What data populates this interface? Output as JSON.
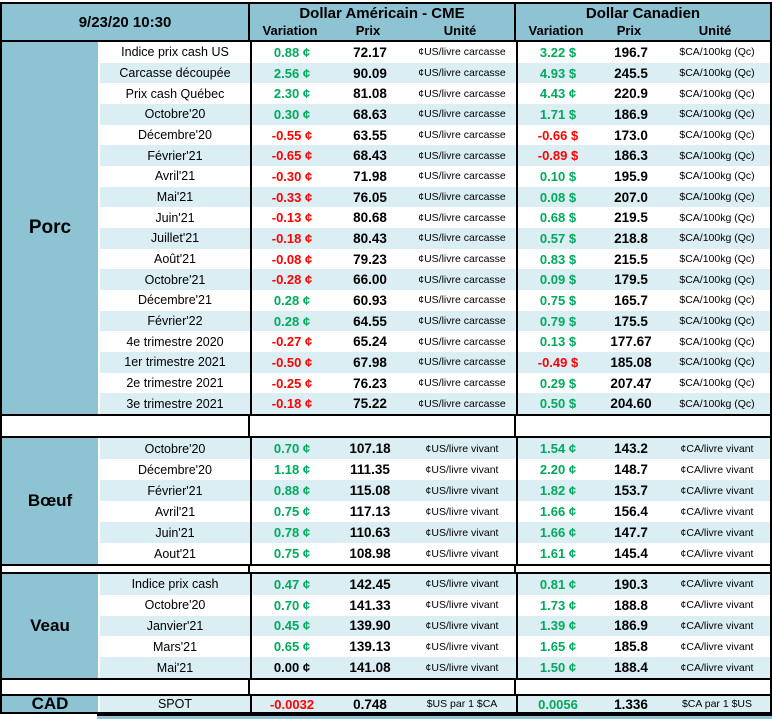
{
  "header": {
    "datetime": "9/23/20 10:30",
    "us_title": "Dollar Américain - CME",
    "ca_title": "Dollar Canadien",
    "col_variation": "Variation",
    "col_prix": "Prix",
    "col_unite": "Unité"
  },
  "colors": {
    "teal_header": "#8EC3D4",
    "stripe_blue": "#DAEEF3",
    "positive_green": "#00A95C",
    "negative_red": "#FF0000",
    "zero_black": "#000000"
  },
  "sections": [
    {
      "name": "Porc",
      "first_stripe": "white",
      "us_unit": "¢US/livre carcasse",
      "ca_unit": "$CA/100kg (Qc)",
      "rows": [
        {
          "label": "Indice prix cash US",
          "us_var": "0.88 ¢",
          "us_prix": "72.17",
          "ca_var": "3.22 $",
          "ca_prix": "196.7"
        },
        {
          "label": "Carcasse découpée",
          "us_var": "2.56 ¢",
          "us_prix": "90.09",
          "ca_var": "4.93 $",
          "ca_prix": "245.5"
        },
        {
          "label": "Prix cash Québec",
          "us_var": "2.30 ¢",
          "us_prix": "81.08",
          "ca_var": "4.43 ¢",
          "ca_prix": "220.9"
        },
        {
          "label": "Octobre'20",
          "us_var": "0.30 ¢",
          "us_prix": "68.63",
          "ca_var": "1.71 $",
          "ca_prix": "186.9"
        },
        {
          "label": "Décembre'20",
          "us_var": "-0.55 ¢",
          "us_prix": "63.55",
          "ca_var": "-0.66 $",
          "ca_prix": "173.0"
        },
        {
          "label": "Février'21",
          "us_var": "-0.65 ¢",
          "us_prix": "68.43",
          "ca_var": "-0.89 $",
          "ca_prix": "186.3"
        },
        {
          "label": "Avril'21",
          "us_var": "-0.30 ¢",
          "us_prix": "71.98",
          "ca_var": "0.10 $",
          "ca_prix": "195.9"
        },
        {
          "label": "Mai'21",
          "us_var": "-0.33 ¢",
          "us_prix": "76.05",
          "ca_var": "0.08 $",
          "ca_prix": "207.0"
        },
        {
          "label": "Juin'21",
          "us_var": "-0.13 ¢",
          "us_prix": "80.68",
          "ca_var": "0.68 $",
          "ca_prix": "219.5"
        },
        {
          "label": "Juillet'21",
          "us_var": "-0.18 ¢",
          "us_prix": "80.43",
          "ca_var": "0.57 $",
          "ca_prix": "218.8"
        },
        {
          "label": "Août'21",
          "us_var": "-0.08 ¢",
          "us_prix": "79.23",
          "ca_var": "0.83 $",
          "ca_prix": "215.5"
        },
        {
          "label": "Octobre'21",
          "us_var": "-0.28 ¢",
          "us_prix": "66.00",
          "ca_var": "0.09 $",
          "ca_prix": "179.5"
        },
        {
          "label": "Décembre'21",
          "us_var": "0.28 ¢",
          "us_prix": "60.93",
          "ca_var": "0.75 $",
          "ca_prix": "165.7"
        },
        {
          "label": "Février'22",
          "us_var": "0.28 ¢",
          "us_prix": "64.55",
          "ca_var": "0.79 $",
          "ca_prix": "175.5"
        },
        {
          "label": "4e trimestre 2020",
          "us_var": "-0.27 ¢",
          "us_prix": "65.24",
          "ca_var": "0.13 $",
          "ca_prix": "177.67"
        },
        {
          "label": "1er trimestre 2021",
          "us_var": "-0.50 ¢",
          "us_prix": "67.98",
          "ca_var": "-0.49 $",
          "ca_prix": "185.08"
        },
        {
          "label": "2e trimestre 2021",
          "us_var": "-0.25 ¢",
          "us_prix": "76.23",
          "ca_var": "0.29 $",
          "ca_prix": "207.47"
        },
        {
          "label": "3e trimestre 2021",
          "us_var": "-0.18 ¢",
          "us_prix": "75.22",
          "ca_var": "0.50 $",
          "ca_prix": "204.60"
        }
      ]
    },
    {
      "name": "Bœuf",
      "first_stripe": "blue",
      "us_unit": "¢US/livre vivant",
      "ca_unit": "¢CA/livre vivant",
      "rows": [
        {
          "label": "Octobre'20",
          "us_var": "0.70 ¢",
          "us_prix": "107.18",
          "ca_var": "1.54 ¢",
          "ca_prix": "143.2"
        },
        {
          "label": "Décembre'20",
          "us_var": "1.18 ¢",
          "us_prix": "111.35",
          "ca_var": "2.20 ¢",
          "ca_prix": "148.7"
        },
        {
          "label": "Février'21",
          "us_var": "0.88 ¢",
          "us_prix": "115.08",
          "ca_var": "1.82 ¢",
          "ca_prix": "153.7"
        },
        {
          "label": "Avril'21",
          "us_var": "0.75 ¢",
          "us_prix": "117.13",
          "ca_var": "1.66 ¢",
          "ca_prix": "156.4"
        },
        {
          "label": "Juin'21",
          "us_var": "0.78 ¢",
          "us_prix": "110.63",
          "ca_var": "1.66 ¢",
          "ca_prix": "147.7"
        },
        {
          "label": "Aout'21",
          "us_var": "0.75 ¢",
          "us_prix": "108.98",
          "ca_var": "1.61 ¢",
          "ca_prix": "145.4"
        }
      ]
    },
    {
      "name": "Veau",
      "first_stripe": "blue",
      "us_unit": "¢US/livre vivant",
      "ca_unit": "¢CA/livre vivant",
      "rows": [
        {
          "label": "Indice prix cash",
          "us_var": "0.47 ¢",
          "us_prix": "142.45",
          "ca_var": "0.81 ¢",
          "ca_prix": "190.3"
        },
        {
          "label": "Octobre'20",
          "us_var": "0.70 ¢",
          "us_prix": "141.33",
          "ca_var": "1.73 ¢",
          "ca_prix": "188.8"
        },
        {
          "label": "Janvier'21",
          "us_var": "0.45 ¢",
          "us_prix": "139.90",
          "ca_var": "1.39 ¢",
          "ca_prix": "186.9"
        },
        {
          "label": "Mars'21",
          "us_var": "0.65 ¢",
          "us_prix": "139.13",
          "ca_var": "1.65 ¢",
          "ca_prix": "185.8"
        },
        {
          "label": "Mai'21",
          "us_var": "0.00 ¢",
          "us_prix": "141.08",
          "ca_var": "1.50 ¢",
          "ca_prix": "188.4"
        }
      ]
    },
    {
      "name": "CAD",
      "first_stripe": "blue",
      "us_unit": "$US par 1 $CA",
      "ca_unit": "$CA par 1 $US",
      "rows": [
        {
          "label": "SPOT",
          "us_var": "-0.0032",
          "us_prix": "0.748",
          "ca_var": "0.0056",
          "ca_prix": "1.336"
        }
      ]
    }
  ]
}
